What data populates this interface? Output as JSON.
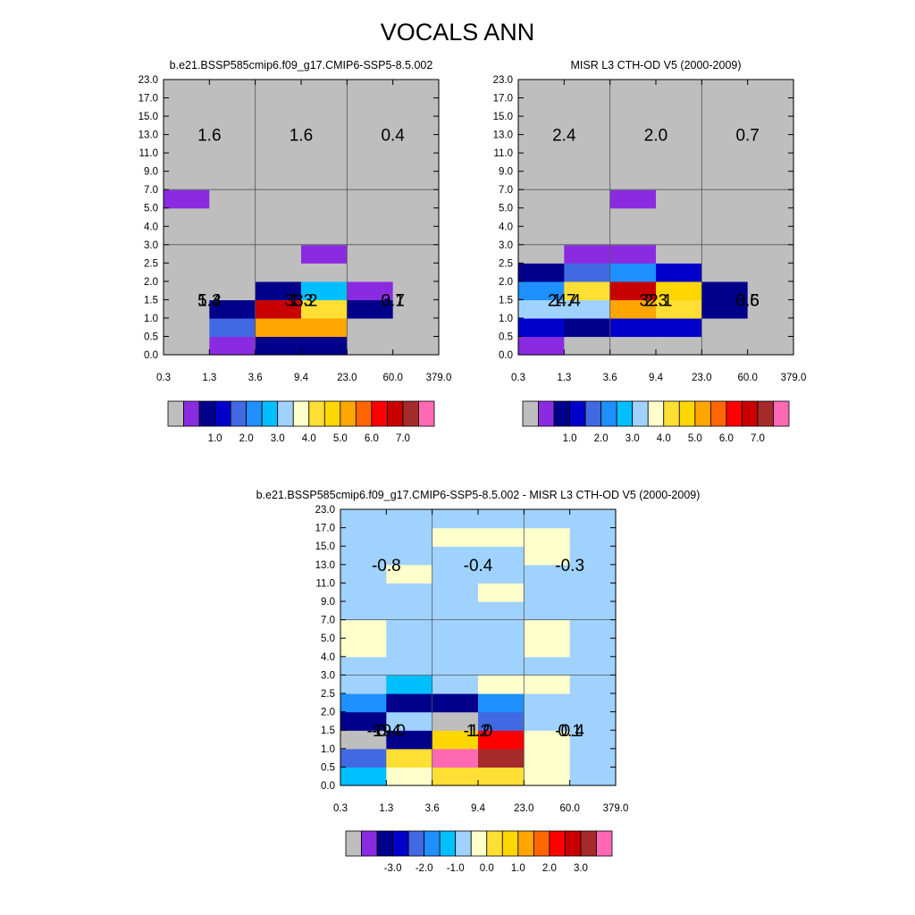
{
  "page": {
    "title": "VOCALS ANN"
  },
  "colors": {
    "palette": [
      "#bebebe",
      "#8a2be2",
      "#00008b",
      "#0000cd",
      "#4169e1",
      "#1e90ff",
      "#00bfff",
      "#a0d2ff",
      "#ffffcc",
      "#ffdf33",
      "#ffd700",
      "#ffa500",
      "#ff6600",
      "#ff0000",
      "#c80000",
      "#a52a2a",
      "#ff69b4"
    ],
    "grid_line": "#555555"
  },
  "chart_data": [
    {
      "type": "heatmap",
      "title": "b.e21.BSSP585cmip6.f09_g17.CMIP6-SSP5-8.5.002",
      "x_ticks": [
        "0.3",
        "1.3",
        "3.6",
        "9.4",
        "23.0",
        "60.0",
        "379.0"
      ],
      "y_ticks": [
        "0.0",
        "0.5",
        "1.0",
        "1.5",
        "2.0",
        "2.5",
        "3.0",
        "4.0",
        "5.0",
        "7.0",
        "9.0",
        "11.0",
        "13.0",
        "15.0",
        "17.0",
        "23.0"
      ],
      "cells_note": "cell values are palette color indices; rows from bottom (0.0-0.5) to top (17.0-23.0), columns left to right",
      "cells": [
        [
          0,
          1,
          2,
          2,
          0,
          0
        ],
        [
          0,
          4,
          11,
          11,
          0,
          0
        ],
        [
          0,
          2,
          14,
          9,
          2,
          0
        ],
        [
          0,
          0,
          2,
          6,
          1,
          0
        ],
        [
          0,
          0,
          0,
          0,
          0,
          0
        ],
        [
          0,
          0,
          0,
          1,
          0,
          0
        ],
        [
          0,
          0,
          0,
          0,
          0,
          0
        ],
        [
          0,
          0,
          0,
          0,
          0,
          0
        ],
        [
          1,
          0,
          0,
          0,
          0,
          0
        ],
        [
          0,
          0,
          0,
          0,
          0,
          0
        ],
        [
          0,
          0,
          0,
          0,
          0,
          0
        ],
        [
          0,
          0,
          0,
          0,
          0,
          0
        ],
        [
          0,
          0,
          0,
          0,
          0,
          0
        ],
        [
          0,
          0,
          0,
          0,
          0,
          0
        ],
        [
          0,
          0,
          0,
          0,
          0,
          0
        ]
      ],
      "ctype_labels": [
        {
          "text": "5.3",
          "col": 0,
          "row": 1.5
        },
        {
          "text": "33.2",
          "col": 1,
          "row": 1.5
        },
        {
          "text": "3.1",
          "col": 2,
          "row": 1.5
        },
        {
          "text": "1.4",
          "col": 0,
          "row": 5.5
        },
        {
          "text": "1.3",
          "col": 1,
          "row": 5.5
        },
        {
          "text": "0.7",
          "col": 2,
          "row": 5.5
        },
        {
          "text": "1.6",
          "col": 0,
          "row": 12.5
        },
        {
          "text": "1.6",
          "col": 1,
          "row": 12.5
        },
        {
          "text": "0.4",
          "col": 2,
          "row": 12.5
        }
      ],
      "colorbar_labels": [
        "1.0",
        "2.0",
        "3.0",
        "4.0",
        "5.0",
        "6.0",
        "7.0"
      ]
    },
    {
      "type": "heatmap",
      "title": "MISR L3 CTH-OD V5 (2000-2009)",
      "x_ticks": [
        "0.3",
        "1.3",
        "3.6",
        "9.4",
        "23.0",
        "60.0",
        "379.0"
      ],
      "y_ticks": [
        "0.0",
        "0.5",
        "1.0",
        "1.5",
        "2.0",
        "2.5",
        "3.0",
        "4.0",
        "5.0",
        "7.0",
        "9.0",
        "11.0",
        "13.0",
        "15.0",
        "17.0",
        "23.0"
      ],
      "cells": [
        [
          1,
          0,
          0,
          0,
          0,
          0
        ],
        [
          3,
          2,
          3,
          3,
          0,
          0
        ],
        [
          7,
          7,
          11,
          9,
          2,
          0
        ],
        [
          5,
          9,
          14,
          10,
          2,
          0
        ],
        [
          2,
          4,
          5,
          3,
          0,
          0
        ],
        [
          0,
          1,
          1,
          0,
          0,
          0
        ],
        [
          0,
          0,
          0,
          0,
          0,
          0
        ],
        [
          0,
          0,
          0,
          0,
          0,
          0
        ],
        [
          0,
          0,
          1,
          0,
          0,
          0
        ],
        [
          0,
          0,
          0,
          0,
          0,
          0
        ],
        [
          0,
          0,
          0,
          0,
          0,
          0
        ],
        [
          0,
          0,
          0,
          0,
          0,
          0
        ],
        [
          0,
          0,
          0,
          0,
          0,
          0
        ],
        [
          0,
          0,
          0,
          0,
          0,
          0
        ],
        [
          0,
          0,
          0,
          0,
          0,
          0
        ]
      ],
      "ctype_labels": [
        {
          "text": "24.4",
          "col": 0,
          "row": 1.5
        },
        {
          "text": "32.1",
          "col": 1,
          "row": 1.5
        },
        {
          "text": "3.5",
          "col": 2,
          "row": 1.5
        },
        {
          "text": "1.7",
          "col": 0,
          "row": 5.5
        },
        {
          "text": "2.3",
          "col": 1,
          "row": 5.5
        },
        {
          "text": "0.6",
          "col": 2,
          "row": 5.5
        },
        {
          "text": "2.4",
          "col": 0,
          "row": 12.5
        },
        {
          "text": "2.0",
          "col": 1,
          "row": 12.5
        },
        {
          "text": "0.7",
          "col": 2,
          "row": 12.5
        }
      ],
      "colorbar_labels": [
        "1.0",
        "2.0",
        "3.0",
        "4.0",
        "5.0",
        "6.0",
        "7.0"
      ]
    },
    {
      "type": "heatmap",
      "title": "b.e21.BSSP585cmip6.f09_g17.CMIP6-SSP5-8.5.002 - MISR L3 CTH-OD V5 (2000-2009)",
      "x_ticks": [
        "0.3",
        "1.3",
        "3.6",
        "9.4",
        "23.0",
        "60.0",
        "379.0"
      ],
      "y_ticks": [
        "0.0",
        "0.5",
        "1.0",
        "1.5",
        "2.0",
        "2.5",
        "3.0",
        "4.0",
        "5.0",
        "7.0",
        "9.0",
        "11.0",
        "13.0",
        "15.0",
        "17.0",
        "23.0"
      ],
      "cells": [
        [
          6,
          8,
          9,
          9,
          8,
          7
        ],
        [
          4,
          9,
          16,
          15,
          8,
          7
        ],
        [
          0,
          2,
          10,
          13,
          8,
          7
        ],
        [
          2,
          7,
          0,
          4,
          7,
          7
        ],
        [
          5,
          2,
          2,
          5,
          7,
          7
        ],
        [
          7,
          6,
          7,
          8,
          8,
          7
        ],
        [
          7,
          7,
          7,
          7,
          7,
          7
        ],
        [
          8,
          7,
          7,
          7,
          8,
          7
        ],
        [
          8,
          7,
          7,
          7,
          8,
          7
        ],
        [
          7,
          7,
          7,
          7,
          7,
          7
        ],
        [
          7,
          7,
          7,
          8,
          7,
          7
        ],
        [
          7,
          8,
          7,
          7,
          7,
          7
        ],
        [
          7,
          7,
          7,
          7,
          8,
          7
        ],
        [
          7,
          7,
          8,
          8,
          8,
          7
        ],
        [
          7,
          7,
          7,
          7,
          7,
          7
        ]
      ],
      "ctype_labels": [
        {
          "text": "-19.0",
          "col": 0,
          "row": 1.5
        },
        {
          "text": "1.2",
          "col": 1,
          "row": 1.5
        },
        {
          "text": "-0.4",
          "col": 2,
          "row": 1.5
        },
        {
          "text": "-0.4",
          "col": 0,
          "row": 5.5
        },
        {
          "text": "-1.0",
          "col": 1,
          "row": 5.5
        },
        {
          "text": "0.1",
          "col": 2,
          "row": 5.5
        },
        {
          "text": "-0.8",
          "col": 0,
          "row": 12.5
        },
        {
          "text": "-0.4",
          "col": 1,
          "row": 12.5
        },
        {
          "text": "-0.3",
          "col": 2,
          "row": 12.5
        }
      ],
      "colorbar_labels": [
        "-3.0",
        "-2.0",
        "-1.0",
        "0.0",
        "1.0",
        "2.0",
        "3.0"
      ]
    }
  ]
}
